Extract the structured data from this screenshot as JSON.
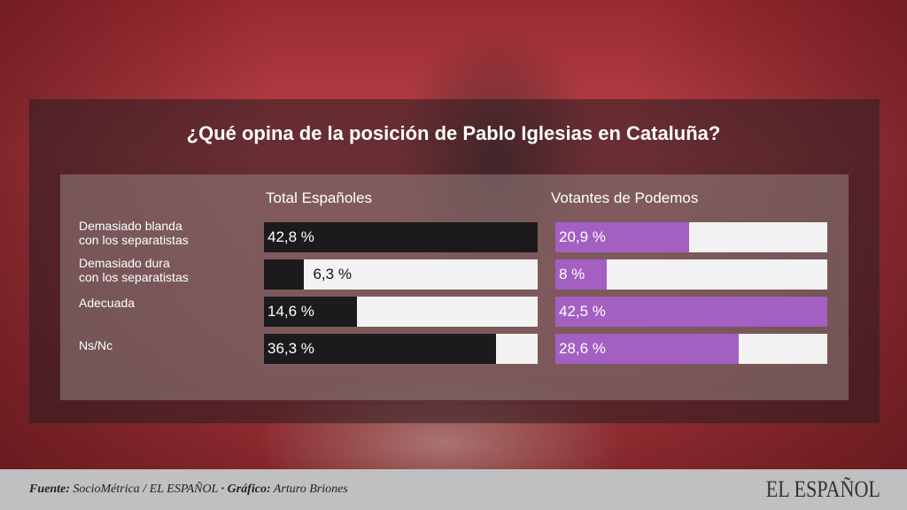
{
  "chart_data": {
    "type": "bar",
    "orientation": "horizontal",
    "title": "¿Qué opina de la posición de Pablo Iglesias en Cataluña?",
    "categories": [
      "Demasiado blanda con los separatistas",
      "Demasiado dura con los separatistas",
      "Adecuada",
      "Ns/Nc"
    ],
    "category_lines": [
      [
        "Demasiado blanda",
        "con los separatistas"
      ],
      [
        "Demasiado dura",
        "con los separatistas"
      ],
      [
        "Adecuada"
      ],
      [
        "Ns/Nc"
      ]
    ],
    "series": [
      {
        "name": "Total Españoles",
        "values": [
          42.8,
          6.3,
          14.6,
          36.3
        ],
        "labels": [
          "42,8 %",
          "6,3 %",
          "14,6 %",
          "36,3 %"
        ],
        "color": "#1c1a1d"
      },
      {
        "name": "Votantes de Podemos",
        "values": [
          20.9,
          8,
          42.5,
          28.6
        ],
        "labels": [
          "20,9 %",
          "8 %",
          "42,5 %",
          "28,6 %"
        ],
        "color": "#a35fc2"
      }
    ],
    "unit": "%",
    "track_color": "#f2f2f2"
  },
  "footer": {
    "source_label": "Fuente:",
    "source": " SocioMétrica / EL ESPAÑOL ",
    "graphic_label": "· Gráfico:",
    "graphic": " Arturo Briones",
    "logo": "EL ESPAÑOL"
  }
}
